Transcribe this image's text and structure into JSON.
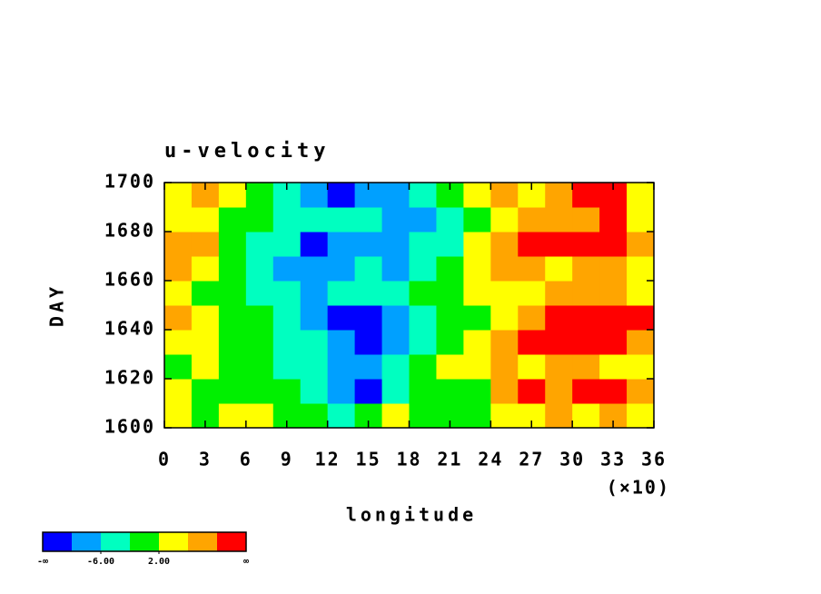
{
  "chart_data": {
    "type": "heatmap",
    "title": "u-velocity",
    "xlabel": "longitude",
    "ylabel": "DAY",
    "x_multiplier_label": "(×10)",
    "xlim": [
      0,
      36
    ],
    "xticks": [
      0,
      3,
      6,
      9,
      12,
      15,
      18,
      21,
      24,
      27,
      30,
      33,
      36
    ],
    "ylim": [
      1600,
      1700
    ],
    "yticks": [
      1600,
      1620,
      1640,
      1660,
      1680,
      1700
    ],
    "z": [
      [
        3,
        1,
        4,
        2,
        -1,
        0,
        -3,
        -1,
        2,
        0,
        -2,
        1,
        3,
        5,
        7,
        4,
        6,
        3
      ],
      [
        2,
        -1,
        1,
        0,
        -2,
        -4,
        -8,
        -11,
        -5,
        -2,
        0,
        1,
        8,
        11,
        9,
        12,
        11,
        6
      ],
      [
        1,
        3,
        0,
        -2,
        -5,
        -3,
        -7,
        -9,
        -4,
        -1,
        2,
        4,
        6,
        5,
        7,
        8,
        4,
        2
      ],
      [
        5,
        2,
        -1,
        0,
        -3,
        -6,
        -9,
        -12,
        -8,
        -3,
        0,
        3,
        7,
        10,
        12,
        11,
        13,
        9
      ],
      [
        8,
        4,
        1,
        -2,
        -4,
        -8,
        -11,
        -12,
        -7,
        -4,
        -2,
        1,
        4,
        8,
        11,
        13,
        12,
        10
      ],
      [
        2,
        1,
        -1,
        -3,
        -5,
        -7,
        -5,
        -6,
        -3,
        -1,
        1,
        2,
        5,
        4,
        6,
        8,
        7,
        3
      ],
      [
        6,
        3,
        -2,
        -4,
        -8,
        -10,
        -9,
        -6,
        -7,
        -4,
        -1,
        3,
        6,
        8,
        5,
        7,
        9,
        4
      ],
      [
        9,
        6,
        1,
        -3,
        -6,
        -11,
        -9,
        -8,
        -10,
        -6,
        -3,
        2,
        8,
        11,
        10,
        12,
        11,
        7
      ],
      [
        4,
        3,
        0,
        -2,
        -4,
        -6,
        -5,
        -3,
        -8,
        -9,
        -5,
        -1,
        4,
        7,
        6,
        9,
        12,
        5
      ],
      [
        5,
        7,
        2,
        0,
        -3,
        -8,
        -11,
        -7,
        -10,
        -6,
        -2,
        3,
        6,
        5,
        8,
        10,
        11,
        4
      ]
    ],
    "levels": [
      -10,
      -6,
      -2,
      2,
      6,
      10
    ],
    "colors": [
      "#0000ff",
      "#00a0ff",
      "#00ffc0",
      "#00f000",
      "#ffff00",
      "#ffa500",
      "#ff0000"
    ],
    "colorbar_min_label": "-∞",
    "colorbar_max_label": "∞",
    "colorbar_ticks": [
      {
        "value": -6,
        "label": "-6.00"
      },
      {
        "value": 2,
        "label": "2.00"
      }
    ]
  }
}
